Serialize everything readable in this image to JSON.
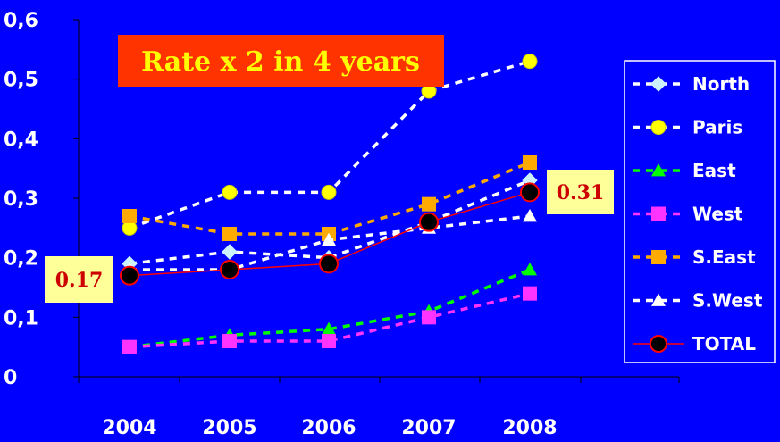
{
  "chart_data": {
    "type": "line",
    "categories": [
      "2004",
      "2005",
      "2006",
      "2007",
      "2008"
    ],
    "ylim": [
      0,
      0.6
    ],
    "yticks": [
      "0",
      "0,1",
      "0,2",
      "0,3",
      "0,4",
      "0,5",
      "0,6"
    ],
    "grid": false,
    "legend_position": "right",
    "banner": "Rate x 2 in 4 years",
    "callouts": [
      {
        "text": "0.17",
        "series": "TOTAL",
        "index": 0
      },
      {
        "text": "0.31",
        "series": "TOTAL",
        "index": 4
      }
    ],
    "series": [
      {
        "name": "North",
        "values": [
          0.19,
          0.21,
          0.2,
          0.26,
          0.33
        ],
        "color": "#ffffff",
        "marker_color": "#ccf2ff",
        "marker": "diamond",
        "line": "dashed"
      },
      {
        "name": "Paris",
        "values": [
          0.25,
          0.31,
          0.31,
          0.48,
          0.53
        ],
        "color": "#ffffff",
        "marker_color": "#ffff00",
        "marker": "circle",
        "line": "dashed"
      },
      {
        "name": "East",
        "values": [
          0.05,
          0.07,
          0.08,
          0.11,
          0.18
        ],
        "color": "#00ff00",
        "marker_color": "#00ff00",
        "marker": "triangle",
        "line": "dashed"
      },
      {
        "name": "West",
        "values": [
          0.05,
          0.06,
          0.06,
          0.1,
          0.14
        ],
        "color": "#ff33ff",
        "marker_color": "#ff33ff",
        "marker": "square",
        "line": "dashed"
      },
      {
        "name": "S.East",
        "values": [
          0.27,
          0.24,
          0.24,
          0.29,
          0.36
        ],
        "color": "#ffaa00",
        "marker_color": "#ffaa00",
        "marker": "square",
        "line": "dashed"
      },
      {
        "name": "S.West",
        "values": [
          0.18,
          0.18,
          0.23,
          0.25,
          0.27
        ],
        "color": "#ffffff",
        "marker_color": "#ffffff",
        "marker": "triangle",
        "line": "dashed"
      },
      {
        "name": "TOTAL",
        "values": [
          0.17,
          0.18,
          0.19,
          0.26,
          0.31
        ],
        "color": "#ff0000",
        "marker_color": "#000000",
        "marker": "circle-ring",
        "line": "solid"
      }
    ]
  }
}
